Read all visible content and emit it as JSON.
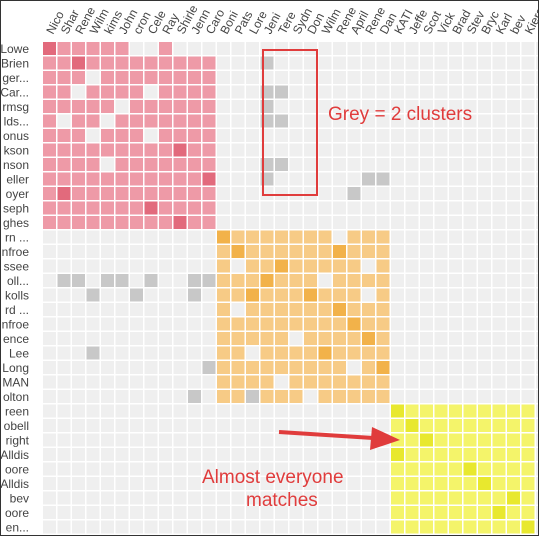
{
  "chart_data": {
    "type": "heatmap",
    "title": "",
    "rows": [
      "Lowe",
      "Brien",
      "ger...",
      "Car...",
      "rmsg",
      "lds...",
      "onus",
      "kson",
      "nson",
      "eller",
      "oyer",
      "seph",
      "ghes",
      "rn ...",
      "nfroe",
      "ssee",
      "oll...",
      "kolls",
      "rd ...",
      "nfroe",
      "ence",
      "Lee",
      "Long",
      "MAN",
      "olton",
      "reen",
      "obell",
      "right",
      "Alldis",
      "oore",
      "Alldis",
      "bev",
      "oore",
      "en..."
    ],
    "columns": [
      "Nico",
      "Shar",
      "Rene",
      "Wilm",
      "kims",
      "John",
      "cron",
      "Cele",
      "Ray",
      "Shirle",
      "Jenn",
      "Caro",
      "Boni",
      "Pats",
      "Lore",
      "Jeni",
      "Tere",
      "Sydn",
      "Don",
      "Wilm",
      "Rene",
      "April",
      "Rene",
      "Dan",
      "KATI",
      "Jeffe",
      "Scot",
      "Vick",
      "Brad",
      "Stev",
      "Bryc",
      "Karl",
      "bev",
      "Kiera",
      "Joyc"
    ],
    "clusters": [
      {
        "name": "pink",
        "color": "#e0707f",
        "start": 0,
        "end": 12
      },
      {
        "name": "orange",
        "color": "#f0b450",
        "start": 13,
        "end": 24
      },
      {
        "name": "yellow",
        "color": "#eded3a",
        "start": 25,
        "end": 34
      }
    ],
    "cell_colors": {
      "background": "#efefef",
      "grey_match": "#c8c8c8"
    },
    "pink_cells": [
      "0,0",
      "0,1",
      "0,2",
      "0,3",
      "0,4",
      "0,5",
      "0,8",
      "1,0",
      "1,1",
      "1,2",
      "1,3",
      "1,4",
      "1,5",
      "1,6",
      "1,7",
      "1,8",
      "1,9",
      "1,10",
      "1,11",
      "2,0",
      "2,1",
      "2,2",
      "2,4",
      "2,5",
      "2,6",
      "2,7",
      "2,8",
      "2,9",
      "2,10",
      "2,11",
      "3,0",
      "3,1",
      "3,3",
      "3,4",
      "3,5",
      "3,6",
      "3,8",
      "3,9",
      "3,10",
      "3,11",
      "4,0",
      "4,1",
      "4,2",
      "4,3",
      "4,4",
      "4,6",
      "4,7",
      "4,8",
      "4,9",
      "4,10",
      "4,11",
      "5,0",
      "5,2",
      "5,3",
      "5,5",
      "5,6",
      "5,7",
      "5,8",
      "5,9",
      "5,10",
      "5,11",
      "6,0",
      "6,1",
      "6,2",
      "6,4",
      "6,5",
      "6,6",
      "6,8",
      "6,9",
      "6,10",
      "6,11",
      "7,0",
      "7,1",
      "7,2",
      "7,3",
      "7,4",
      "7,5",
      "7,6",
      "7,7",
      "7,8",
      "7,9",
      "7,10",
      "7,11",
      "8,0",
      "8,1",
      "8,2",
      "8,3",
      "8,5",
      "8,6",
      "8,7",
      "8,8",
      "8,9",
      "8,10",
      "8,11",
      "9,0",
      "9,1",
      "9,2",
      "9,3",
      "9,4",
      "9,5",
      "9,6",
      "9,7",
      "9,8",
      "9,9",
      "9,10",
      "9,11",
      "10,0",
      "10,1",
      "10,2",
      "10,3",
      "10,4",
      "10,5",
      "10,6",
      "10,7",
      "10,8",
      "10,9",
      "10,10",
      "10,11",
      "11,0",
      "11,1",
      "11,2",
      "11,3",
      "11,4",
      "11,5",
      "11,6",
      "11,7",
      "11,8",
      "11,9",
      "11,10",
      "11,11",
      "12,0",
      "12,1",
      "12,2",
      "12,3",
      "12,4",
      "12,5",
      "12,6",
      "12,7",
      "12,8",
      "12,9",
      "12,10",
      "12,11"
    ],
    "pink_dark": [
      "0,0",
      "1,2",
      "2,3",
      "3,2",
      "4,5",
      "5,4",
      "6,7",
      "7,9",
      "8,4",
      "9,11",
      "10,1",
      "11,7",
      "12,9",
      "3,7",
      "6,3"
    ],
    "orange_cells": [
      "13,12",
      "13,13",
      "13,14",
      "13,15",
      "13,16",
      "13,17",
      "13,18",
      "13,19",
      "13,20",
      "13,21",
      "13,22",
      "13,23",
      "14,12",
      "14,13",
      "14,14",
      "14,15",
      "14,16",
      "14,17",
      "14,18",
      "14,19",
      "14,20",
      "14,21",
      "14,22",
      "14,23",
      "15,12",
      "15,13",
      "15,14",
      "15,15",
      "15,16",
      "15,17",
      "15,18",
      "15,19",
      "15,20",
      "15,21",
      "15,22",
      "15,23",
      "16,12",
      "16,13",
      "16,14",
      "16,15",
      "16,16",
      "16,17",
      "16,18",
      "16,19",
      "16,20",
      "16,21",
      "16,22",
      "16,23",
      "17,12",
      "17,13",
      "17,14",
      "17,15",
      "17,16",
      "17,17",
      "17,18",
      "17,19",
      "17,20",
      "17,21",
      "17,22",
      "17,23",
      "18,12",
      "18,13",
      "18,14",
      "18,15",
      "18,16",
      "18,17",
      "18,18",
      "18,19",
      "18,20",
      "18,21",
      "18,22",
      "18,23",
      "19,12",
      "19,13",
      "19,14",
      "19,15",
      "19,16",
      "19,17",
      "19,18",
      "19,19",
      "19,20",
      "19,21",
      "19,22",
      "19,23",
      "20,12",
      "20,13",
      "20,14",
      "20,15",
      "20,16",
      "20,17",
      "20,18",
      "20,19",
      "20,20",
      "20,21",
      "20,22",
      "20,23",
      "21,12",
      "21,13",
      "21,14",
      "21,15",
      "21,16",
      "21,17",
      "21,18",
      "21,19",
      "21,20",
      "21,21",
      "21,22",
      "21,23",
      "22,12",
      "22,13",
      "22,14",
      "22,15",
      "22,16",
      "22,17",
      "22,18",
      "22,19",
      "22,20",
      "22,21",
      "22,22",
      "22,23",
      "23,12",
      "23,13",
      "23,14",
      "23,15",
      "23,16",
      "23,17",
      "23,18",
      "23,19",
      "23,20",
      "23,21",
      "23,22",
      "23,23",
      "24,12",
      "24,13",
      "24,14",
      "24,15",
      "24,16",
      "24,17",
      "24,18",
      "24,19",
      "24,20",
      "24,21",
      "24,22",
      "24,23"
    ],
    "orange_dark": [
      "13,12",
      "14,13",
      "15,16",
      "16,15",
      "17,18",
      "18,20",
      "19,21",
      "20,22",
      "21,19",
      "22,23",
      "14,20",
      "17,14"
    ],
    "orange_missing": [
      "13,20",
      "15,22",
      "16,19",
      "18,13",
      "20,17",
      "21,14",
      "22,21",
      "23,16",
      "24,18",
      "24,14",
      "15,13",
      "17,22"
    ],
    "yellow_cells": [
      "25,24",
      "25,25",
      "25,26",
      "25,27",
      "25,28",
      "25,29",
      "25,30",
      "25,31",
      "25,32",
      "25,33",
      "26,24",
      "26,25",
      "26,26",
      "26,27",
      "26,28",
      "26,29",
      "26,30",
      "26,31",
      "26,32",
      "26,33",
      "27,24",
      "27,25",
      "27,26",
      "27,27",
      "27,28",
      "27,29",
      "27,30",
      "27,31",
      "27,32",
      "27,33",
      "28,24",
      "28,25",
      "28,26",
      "28,27",
      "28,28",
      "28,29",
      "28,30",
      "28,31",
      "28,32",
      "28,33",
      "29,24",
      "29,25",
      "29,26",
      "29,27",
      "29,28",
      "29,29",
      "29,30",
      "29,31",
      "29,32",
      "29,33",
      "30,24",
      "30,25",
      "30,26",
      "30,27",
      "30,28",
      "30,29",
      "30,30",
      "30,31",
      "30,32",
      "30,33",
      "31,24",
      "31,25",
      "31,26",
      "31,27",
      "31,28",
      "31,29",
      "31,30",
      "31,31",
      "31,32",
      "31,33",
      "32,24",
      "32,25",
      "32,26",
      "32,27",
      "32,28",
      "32,29",
      "32,30",
      "32,31",
      "32,32",
      "32,33",
      "33,24",
      "33,25",
      "33,26",
      "33,27",
      "33,28",
      "33,29",
      "33,30",
      "33,31",
      "33,32",
      "33,33"
    ],
    "yellow_dark": [
      "26,25",
      "27,26",
      "28,24",
      "29,29",
      "30,30",
      "31,32",
      "32,31",
      "33,33",
      "25,24"
    ],
    "yellow_missing": [
      "25,24"
    ],
    "grey_cells": [
      "1,15",
      "3,15",
      "3,16",
      "4,15",
      "5,15",
      "5,16",
      "8,15",
      "8,16",
      "9,15",
      "9,23",
      "10,21",
      "16,1",
      "16,2",
      "16,4",
      "16,5",
      "16,7",
      "16,10",
      "16,11",
      "16,12",
      "17,3",
      "17,6",
      "17,10",
      "21,3",
      "22,11",
      "23,12",
      "24,10",
      "24,14",
      "24,17",
      "9,22",
      "14,20"
    ]
  },
  "annotations": {
    "box_label": "Grey = 2 clusters",
    "arrow_label_line1": "Almost everyone",
    "arrow_label_line2": "matches",
    "accent_color": "#e03c3c"
  }
}
